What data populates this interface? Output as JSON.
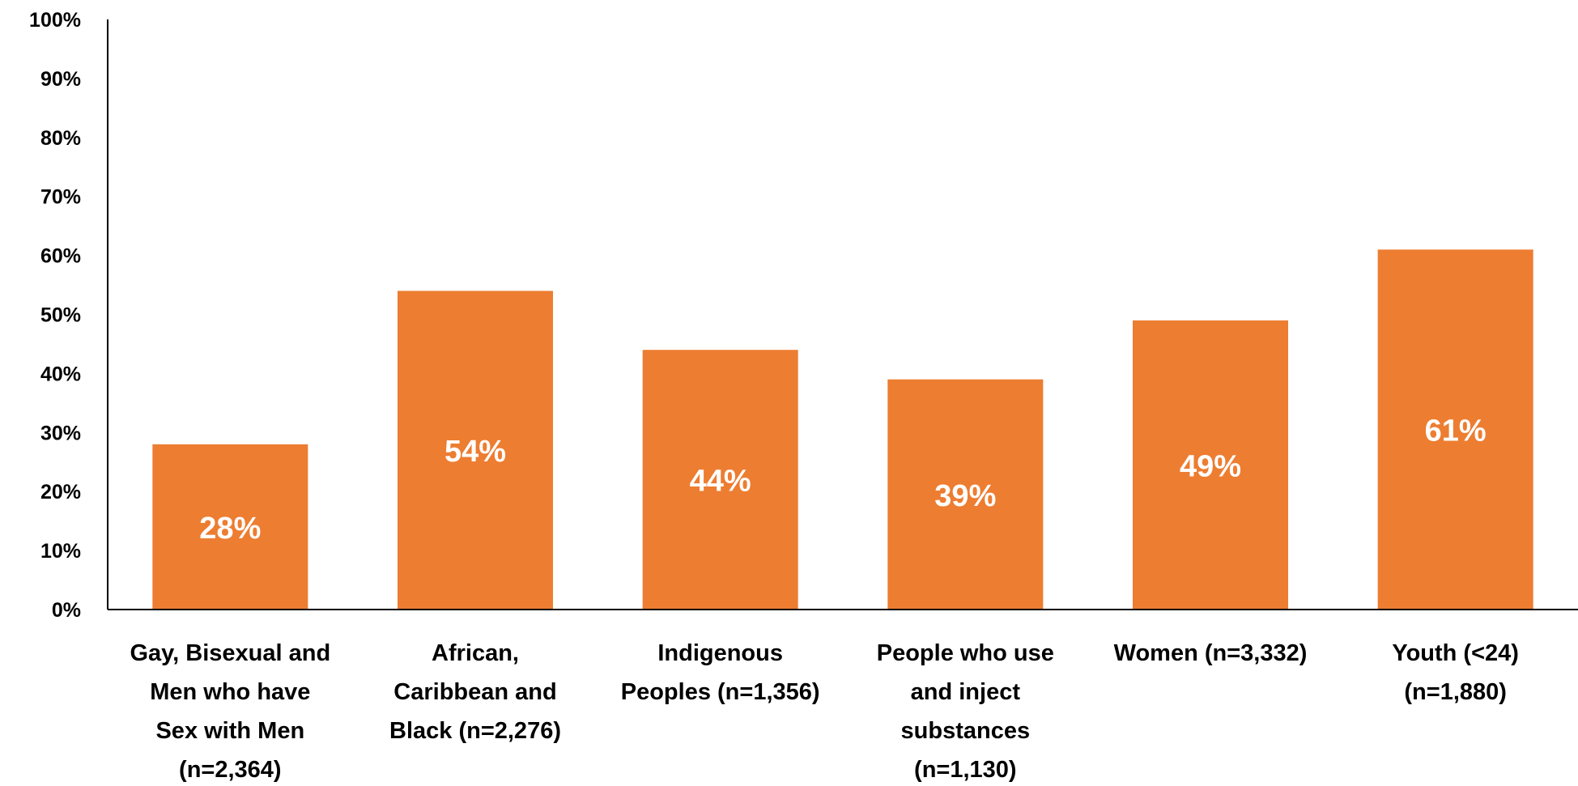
{
  "chart_data": {
    "type": "bar",
    "categories": [
      "Gay, Bisexual and Men who have Sex with Men (n=2,364)",
      "African, Caribbean and Black (n=2,276)",
      "Indigenous Peoples (n=1,356)",
      "People who use and inject substances (n=1,130)",
      "Women (n=3,332)",
      "Youth (<24) (n=1,880)"
    ],
    "category_lines": [
      [
        "Gay, Bisexual and",
        "Men who have",
        "Sex with Men",
        "(n=2,364)"
      ],
      [
        "African,",
        "Caribbean and",
        "Black (n=2,276)"
      ],
      [
        "Indigenous",
        "Peoples (n=1,356)"
      ],
      [
        "People who use",
        "and inject",
        "substances",
        "(n=1,130)"
      ],
      [
        "Women (n=3,332)"
      ],
      [
        "Youth (<24)",
        "(n=1,880)"
      ]
    ],
    "values": [
      28,
      54,
      44,
      39,
      49,
      61
    ],
    "data_labels": [
      "28%",
      "54%",
      "44%",
      "39%",
      "49%",
      "61%"
    ],
    "yticks": [
      "0%",
      "10%",
      "20%",
      "30%",
      "40%",
      "50%",
      "60%",
      "70%",
      "80%",
      "90%",
      "100%"
    ],
    "ylim": [
      0,
      100
    ],
    "title": "",
    "xlabel": "",
    "ylabel": "",
    "grid": false,
    "bar_color": "#ED7D31",
    "label_color": "#FFFFFF",
    "axis_color": "#000000"
  }
}
